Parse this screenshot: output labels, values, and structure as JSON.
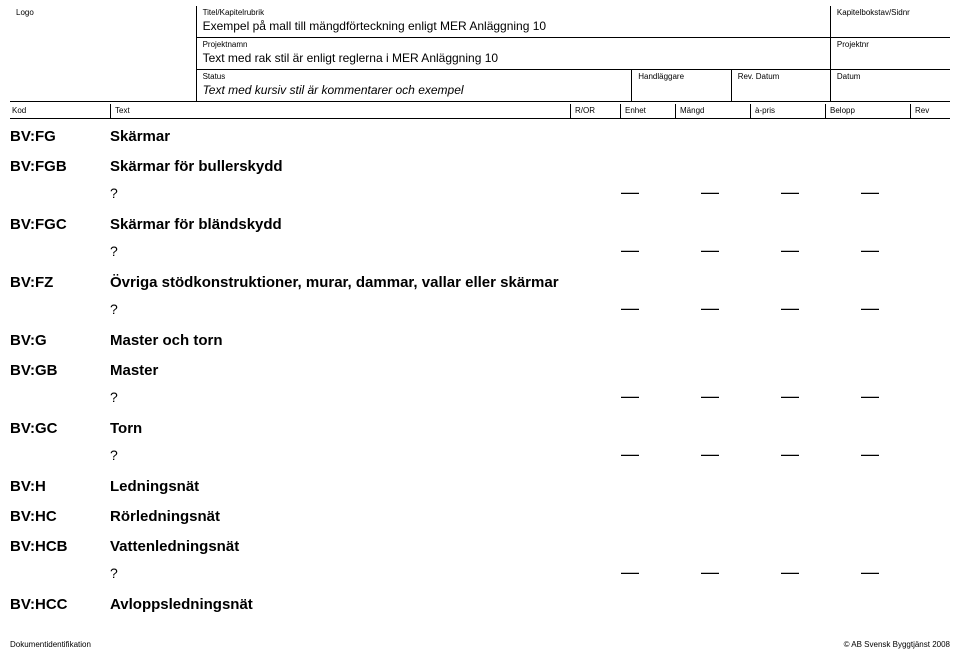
{
  "header": {
    "logo_label": "Logo",
    "title_label": "Titel/Kapitelrubrik",
    "title_value": "Exempel på mall till mängdförteckning enligt MER Anläggning 10",
    "chapter_label": "Kapitelbokstav/Sidnr",
    "project_label": "Projektnamn",
    "project_value": "Text med rak stil är enligt reglerna i MER Anläggning 10",
    "projectnr_label": "Projektnr",
    "status_label": "Status",
    "status_value": "Text med kursiv stil är kommentarer och exempel",
    "handler_label": "Handläggare",
    "revdate_label": "Rev. Datum",
    "date_label": "Datum"
  },
  "columns": {
    "kod": "Kod",
    "text": "Text",
    "ror": "R/OR",
    "enhet": "Enhet",
    "mangd": "Mängd",
    "apris": "à-pris",
    "belopp": "Belopp",
    "rev": "Rev"
  },
  "dash": "—",
  "q": "?",
  "rows": [
    {
      "kod": "BV:FG",
      "text": "Skärmar",
      "dash": false
    },
    {
      "kod": "BV:FGB",
      "text": "Skärmar för bullerskydd",
      "dash": true
    },
    {
      "kod": "BV:FGC",
      "text": "Skärmar för bländskydd",
      "dash": true
    },
    {
      "kod": "BV:FZ",
      "text": "Övriga stödkonstruktioner, murar, dammar, vallar eller skärmar",
      "dash": true
    },
    {
      "kod": "BV:G",
      "text": "Master och torn",
      "dash": false
    },
    {
      "kod": "BV:GB",
      "text": "Master",
      "dash": true
    },
    {
      "kod": "BV:GC",
      "text": "Torn",
      "dash": true
    },
    {
      "kod": "BV:H",
      "text": "Ledningsnät",
      "dash": false
    },
    {
      "kod": "BV:HC",
      "text": "Rörledningsnät",
      "dash": false
    },
    {
      "kod": "BV:HCB",
      "text": "Vattenledningsnät",
      "dash": true
    },
    {
      "kod": "BV:HCC",
      "text": "Avloppsledningsnät",
      "dash": false
    }
  ],
  "footer": {
    "left": "Dokumentidentifikation",
    "right": "© AB Svensk Byggtjänst 2008"
  }
}
